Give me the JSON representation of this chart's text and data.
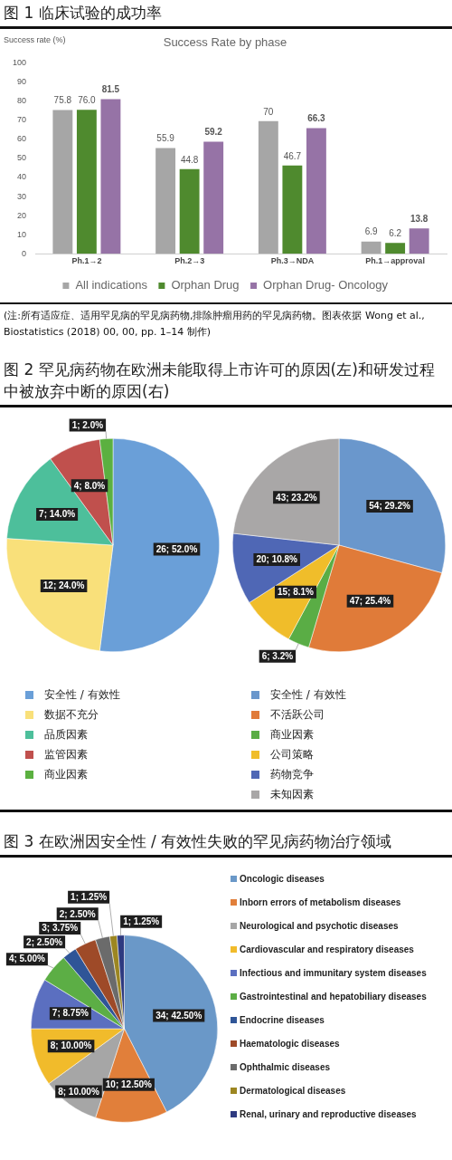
{
  "chart_data": [
    {
      "type": "bar",
      "title": "图 1 临床试验的成功率",
      "subtitle": "Success Rate by phase",
      "ylabel": "Success rate (%)",
      "categories": [
        "Ph.1→2",
        "Ph.2→3",
        "Ph.3→NDA",
        "Ph.1→approval"
      ],
      "series": [
        {
          "name": "All indications",
          "color": "#a6a6a6",
          "values": [
            75.8,
            55.9,
            70,
            6.9
          ],
          "value_labels": [
            "75.8",
            "55.9",
            "70",
            "6.9"
          ]
        },
        {
          "name": "Orphan Drug",
          "color": "#4f8a2e",
          "values": [
            76.0,
            44.8,
            46.7,
            6.2
          ],
          "value_labels": [
            "76.0",
            "44.8",
            "46.7",
            "6.2"
          ]
        },
        {
          "name": "Orphan Drug- Oncology",
          "color": "#9673a6",
          "values": [
            81.5,
            59.2,
            66.3,
            13.8
          ],
          "value_labels": [
            "81.5",
            "59.2",
            "66.3",
            "13.8"
          ]
        }
      ],
      "ylim": [
        0,
        100
      ],
      "yticks": [
        0,
        10,
        20,
        30,
        40,
        50,
        60,
        70,
        80,
        90,
        100
      ],
      "grid": false,
      "legend": "bottom",
      "annotations": [
        "(注:所有适应症、适用罕见病的罕见病药物,排除肿瘤用药的罕见病药物。图表依据 Wong et al., Biostatistics (2018) 00, 00, pp. 1–14 制作)"
      ]
    },
    {
      "type": "pie",
      "title": "图 2 罕见病药物在欧洲未能取得上市许可的原因(左)和研发过程中被放弃中断的原因(右)",
      "categories": [
        "安全性 / 有效性",
        "数据不充分",
        "品质因素",
        "监管因素",
        "商业因素"
      ],
      "values": [
        26,
        12,
        7,
        4,
        1
      ],
      "value_labels": [
        "26; 52.0%",
        "12; 24.0%",
        "7; 14.0%",
        "4; 8.0%",
        "1; 2.0%"
      ],
      "colors": [
        "#6a9fd8",
        "#f9e07a",
        "#4dbf9b",
        "#c0504d",
        "#5bb040"
      ],
      "legend": "bottom"
    },
    {
      "type": "pie",
      "categories": [
        "安全性 / 有效性",
        "不活跃公司",
        "商业因素",
        "公司策略",
        "药物竞争",
        "未知因素"
      ],
      "values": [
        54,
        47,
        6,
        15,
        20,
        43
      ],
      "value_labels": [
        "54; 29.2%",
        "47; 25.4%",
        "6; 3.2%",
        "15; 8.1%",
        "20; 10.8%",
        "43; 23.2%"
      ],
      "colors": [
        "#6a97cc",
        "#e07b39",
        "#5aad45",
        "#f0bd2a",
        "#4f67b5",
        "#a9a7a7"
      ],
      "legend": "bottom"
    },
    {
      "type": "pie",
      "title": "图 3 在欧洲因安全性 / 有效性失败的罕见病药物治疗领域",
      "categories": [
        "Oncologic diseases",
        "Inborn errors of metabolism diseases",
        "Neurological and psychotic diseases",
        "Cardiovascular and respiratory diseases",
        "Infectious and immunitary system diseases",
        "Gastrointestinal and hepatobiliary diseases",
        "Endocrine diseases",
        "Haematologic diseases",
        "Ophthalmic diseases",
        "Dermatological diseases",
        "Renal, urinary and reproductive diseases"
      ],
      "values": [
        34,
        10,
        8,
        8,
        7,
        4,
        2,
        3,
        2,
        1,
        1
      ],
      "value_labels": [
        "34; 42.50%",
        "10; 12.50%",
        "8; 10.00%",
        "8; 10.00%",
        "7; 8.75%",
        "4; 5.00%",
        "2; 2.50%",
        "3; 3.75%",
        "2; 2.50%",
        "1; 1.25%",
        "1; 1.25%"
      ],
      "colors": [
        "#6a98c8",
        "#e17f3a",
        "#a6a6a6",
        "#f1bb2b",
        "#5b6fc0",
        "#5cae45",
        "#2f5597",
        "#9e4a28",
        "#6b6b6b",
        "#9c8621",
        "#2e3a80"
      ],
      "legend": "right"
    }
  ]
}
